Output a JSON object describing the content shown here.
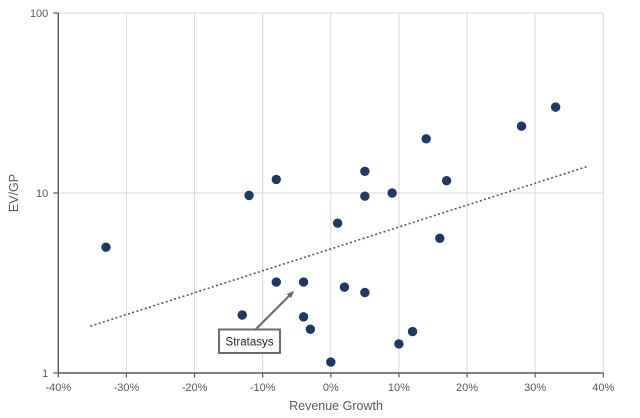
{
  "chart_data": {
    "type": "scatter",
    "title": "",
    "xlabel": "Revenue Growth",
    "ylabel": "EV/GP",
    "x_scale": "linear",
    "y_scale": "log",
    "xlim": [
      -40,
      40
    ],
    "ylim": [
      1,
      100
    ],
    "grid": true,
    "x_ticks": [
      {
        "value": -40,
        "label": "-40%"
      },
      {
        "value": -30,
        "label": "-30%"
      },
      {
        "value": -20,
        "label": "-20%"
      },
      {
        "value": -10,
        "label": "-10%"
      },
      {
        "value": 0,
        "label": "0%"
      },
      {
        "value": 10,
        "label": "10%"
      },
      {
        "value": 20,
        "label": "20%"
      },
      {
        "value": 30,
        "label": "30%"
      },
      {
        "value": 40,
        "label": "40%"
      }
    ],
    "y_ticks": [
      {
        "value": 1,
        "label": "1"
      },
      {
        "value": 10,
        "label": "10"
      },
      {
        "value": 100,
        "label": "100"
      }
    ],
    "points": [
      {
        "x": -33,
        "y": 5.0
      },
      {
        "x": -13,
        "y": 2.1
      },
      {
        "x": -12,
        "y": 9.7
      },
      {
        "x": -8,
        "y": 11.9
      },
      {
        "x": -8,
        "y": 3.2
      },
      {
        "x": -4,
        "y": 3.2,
        "label": "Stratasys"
      },
      {
        "x": -4,
        "y": 2.05
      },
      {
        "x": -3,
        "y": 1.75
      },
      {
        "x": 0,
        "y": 1.15
      },
      {
        "x": 1,
        "y": 6.8
      },
      {
        "x": 2,
        "y": 3.0
      },
      {
        "x": 5,
        "y": 13.2
      },
      {
        "x": 5,
        "y": 9.6
      },
      {
        "x": 5,
        "y": 2.8
      },
      {
        "x": 9,
        "y": 10.0
      },
      {
        "x": 10,
        "y": 1.45
      },
      {
        "x": 12,
        "y": 1.7
      },
      {
        "x": 14,
        "y": 20.0
      },
      {
        "x": 16,
        "y": 5.6
      },
      {
        "x": 17,
        "y": 11.7
      },
      {
        "x": 28,
        "y": 23.5
      },
      {
        "x": 33,
        "y": 30.0
      }
    ],
    "trendline": {
      "style": "dotted",
      "x1": -35.3,
      "y1": 1.82,
      "x2": 37.8,
      "y2": 14.1
    },
    "annotation": {
      "text": "Stratasys",
      "target": {
        "x": -4,
        "y": 3.2
      }
    },
    "legend": null,
    "colors": {
      "point": "#1f3864",
      "trendline": "#595959",
      "axis_line": "#595959",
      "gridline": "#d9d9d9",
      "tick_label": "#595959",
      "axis_title": "#595959",
      "annotation_border": "#6b6b6b",
      "annotation_fill": "#ffffff",
      "background": "#ffffff"
    }
  }
}
